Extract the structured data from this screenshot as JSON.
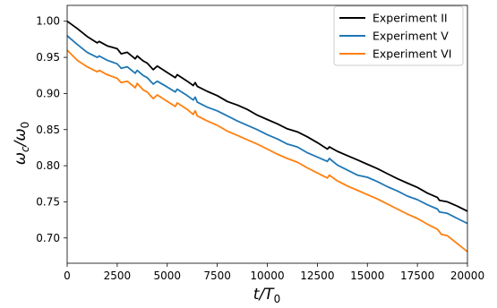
{
  "chart_data": {
    "type": "line",
    "title": "",
    "xlabel_main": "t/T",
    "xlabel_sub": "0",
    "ylabel_main": "ω",
    "ylabel_sub_c": "c",
    "ylabel_slash": "/ω",
    "ylabel_sub_0": "0",
    "xlim": [
      0,
      20000
    ],
    "ylim": [
      0.665,
      1.022
    ],
    "xticks": [
      0,
      2500,
      5000,
      7500,
      10000,
      12500,
      15000,
      17500,
      20000
    ],
    "yticks": [
      0.7,
      0.75,
      0.8,
      0.85,
      0.9,
      0.95,
      1.0
    ],
    "grid": false,
    "legend_position": "top-right",
    "series": [
      {
        "name": "Experiment II",
        "color": "#000000",
        "x": [
          0,
          500,
          1000,
          1500,
          1600,
          2000,
          2500,
          2700,
          3000,
          3400,
          3500,
          3800,
          4000,
          4300,
          4500,
          5000,
          5400,
          5500,
          6000,
          6300,
          6400,
          6500,
          7000,
          7500,
          8000,
          8500,
          9000,
          9500,
          10000,
          10500,
          11000,
          11500,
          12000,
          12500,
          13000,
          13100,
          13500,
          14000,
          14500,
          15000,
          15500,
          16000,
          16500,
          17000,
          17500,
          18000,
          18500,
          18600,
          19000,
          19500,
          20000
        ],
        "y": [
          1.0,
          0.99,
          0.979,
          0.97,
          0.972,
          0.966,
          0.962,
          0.955,
          0.957,
          0.948,
          0.952,
          0.945,
          0.942,
          0.933,
          0.938,
          0.929,
          0.922,
          0.926,
          0.917,
          0.911,
          0.915,
          0.91,
          0.903,
          0.897,
          0.889,
          0.884,
          0.878,
          0.87,
          0.864,
          0.858,
          0.851,
          0.847,
          0.84,
          0.832,
          0.823,
          0.826,
          0.82,
          0.814,
          0.808,
          0.802,
          0.796,
          0.789,
          0.782,
          0.776,
          0.77,
          0.762,
          0.756,
          0.752,
          0.75,
          0.744,
          0.737
        ]
      },
      {
        "name": "Experiment V",
        "color": "#1f77b4",
        "x": [
          0,
          500,
          1000,
          1500,
          1600,
          2000,
          2500,
          2700,
          3000,
          3400,
          3500,
          3800,
          4000,
          4300,
          4500,
          5000,
          5400,
          5500,
          6000,
          6300,
          6400,
          6500,
          7000,
          7500,
          8000,
          8500,
          9000,
          9500,
          10000,
          10500,
          11000,
          11500,
          12000,
          12500,
          13000,
          13100,
          13500,
          14000,
          14500,
          15000,
          15500,
          16000,
          16500,
          17000,
          17500,
          18000,
          18500,
          18600,
          19000,
          19500,
          20000
        ],
        "y": [
          0.98,
          0.968,
          0.957,
          0.95,
          0.952,
          0.946,
          0.941,
          0.935,
          0.937,
          0.928,
          0.932,
          0.925,
          0.922,
          0.913,
          0.917,
          0.909,
          0.902,
          0.906,
          0.897,
          0.891,
          0.895,
          0.888,
          0.881,
          0.876,
          0.869,
          0.862,
          0.856,
          0.85,
          0.843,
          0.837,
          0.83,
          0.826,
          0.818,
          0.812,
          0.806,
          0.81,
          0.801,
          0.794,
          0.787,
          0.784,
          0.778,
          0.771,
          0.765,
          0.758,
          0.753,
          0.746,
          0.74,
          0.736,
          0.734,
          0.727,
          0.72
        ]
      },
      {
        "name": "Experiment VI",
        "color": "#ff7f0e",
        "x": [
          0,
          500,
          1000,
          1500,
          1600,
          2000,
          2500,
          2700,
          3000,
          3400,
          3500,
          3800,
          4000,
          4300,
          4500,
          5000,
          5400,
          5500,
          6000,
          6300,
          6400,
          6500,
          7000,
          7500,
          8000,
          8500,
          9000,
          9500,
          10000,
          10500,
          11000,
          11500,
          12000,
          12500,
          13000,
          13100,
          13500,
          14000,
          14500,
          15000,
          15500,
          16000,
          16500,
          17000,
          17500,
          18000,
          18500,
          18700,
          19000,
          19500,
          20000
        ],
        "y": [
          0.96,
          0.946,
          0.937,
          0.93,
          0.932,
          0.926,
          0.921,
          0.915,
          0.917,
          0.908,
          0.914,
          0.905,
          0.902,
          0.893,
          0.898,
          0.889,
          0.882,
          0.887,
          0.878,
          0.871,
          0.876,
          0.869,
          0.862,
          0.856,
          0.848,
          0.842,
          0.836,
          0.83,
          0.823,
          0.816,
          0.81,
          0.805,
          0.797,
          0.79,
          0.783,
          0.787,
          0.779,
          0.772,
          0.766,
          0.76,
          0.754,
          0.747,
          0.74,
          0.733,
          0.727,
          0.719,
          0.712,
          0.705,
          0.703,
          0.692,
          0.681
        ]
      }
    ]
  }
}
